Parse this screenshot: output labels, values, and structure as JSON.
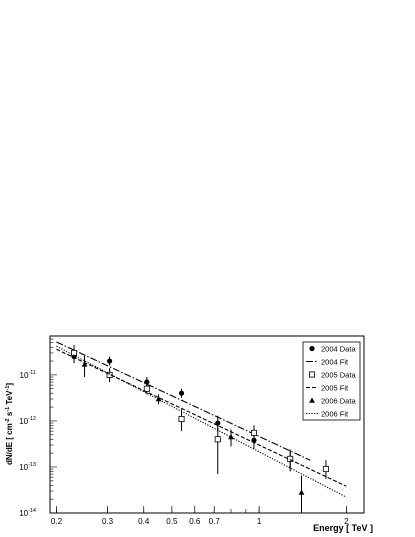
{
  "chart_data": {
    "type": "scatter",
    "title": "",
    "xlabel": "Energy  [ TeV ]",
    "ylabel": "dN/dE  [ cm",
    "ylabel_sup1": "-2",
    "ylabel_mid1": " s",
    "ylabel_sup2": "-1",
    "ylabel_mid2": " TeV",
    "ylabel_sup3": "-1",
    "ylabel_end": "]",
    "xscale": "log",
    "yscale": "log",
    "xlim": [
      0.19,
      2.3
    ],
    "ylim": [
      1e-14,
      7e-11
    ],
    "grid": false,
    "legend_position": "top-right",
    "x_tick_labels": [
      {
        "value": 0.2,
        "label": "0.2"
      },
      {
        "value": 0.3,
        "label": "0.3"
      },
      {
        "value": 0.4,
        "label": "0.4"
      },
      {
        "value": 0.5,
        "label": "0.5"
      },
      {
        "value": 0.6,
        "label": "0.6"
      },
      {
        "value": 0.7,
        "label": "0.7"
      },
      {
        "value": 1,
        "label": "1"
      },
      {
        "value": 2,
        "label": "2"
      }
    ],
    "y_tick_labels": [
      {
        "value": 1e-14,
        "base": "10",
        "exp": "-14"
      },
      {
        "value": 1e-13,
        "base": "10",
        "exp": "-13"
      },
      {
        "value": 1e-12,
        "base": "10",
        "exp": "-12"
      },
      {
        "value": 1e-11,
        "base": "10",
        "exp": "-11"
      }
    ],
    "series": [
      {
        "name": "2004 Data",
        "kind": "points",
        "marker": "circle",
        "points": [
          {
            "x": 0.23,
            "y": 2.5e-11,
            "ylo": 1.8e-11,
            "yhi": 3.4e-11
          },
          {
            "x": 0.305,
            "y": 2e-11,
            "ylo": 1.6e-11,
            "yhi": 2.5e-11
          },
          {
            "x": 0.41,
            "y": 7e-12,
            "ylo": 5.5e-12,
            "yhi": 9e-12
          },
          {
            "x": 0.54,
            "y": 4e-12,
            "ylo": 3.2e-12,
            "yhi": 5e-12
          },
          {
            "x": 0.72,
            "y": 9e-13,
            "ylo": 6e-13,
            "yhi": 1.3e-12
          },
          {
            "x": 0.96,
            "y": 3.8e-13,
            "ylo": 2.5e-13,
            "yhi": 5.5e-13
          },
          {
            "x": 1.28,
            "y": 1.5e-13,
            "ylo": 8e-14,
            "yhi": 2.4e-13
          }
        ]
      },
      {
        "name": "2004 Fit",
        "kind": "line",
        "dash": "7,2,1.5,2",
        "points": [
          {
            "x": 0.2,
            "y": 5.2e-11
          },
          {
            "x": 1.5,
            "y": 1.4e-13
          }
        ]
      },
      {
        "name": "2005 Data",
        "kind": "points",
        "marker": "open-square",
        "points": [
          {
            "x": 0.23,
            "y": 3e-11,
            "ylo": 2e-11,
            "yhi": 4.5e-11
          },
          {
            "x": 0.305,
            "y": 1e-11,
            "ylo": 7e-12,
            "yhi": 1.4e-11
          },
          {
            "x": 0.41,
            "y": 5e-12,
            "ylo": 3.8e-12,
            "yhi": 6.5e-12
          },
          {
            "x": 0.54,
            "y": 1.1e-12,
            "ylo": 6e-13,
            "yhi": 1.8e-12
          },
          {
            "x": 0.72,
            "y": 4e-13,
            "ylo": 7e-14,
            "yhi": 9e-13
          },
          {
            "x": 0.96,
            "y": 5.5e-13,
            "ylo": 3.5e-13,
            "yhi": 8e-13
          },
          {
            "x": 1.28,
            "y": 1.5e-13,
            "ylo": 9e-14,
            "yhi": 2.3e-13
          },
          {
            "x": 1.7,
            "y": 9e-14,
            "ylo": 5.5e-14,
            "yhi": 1.4e-13
          }
        ]
      },
      {
        "name": "2005 Fit",
        "kind": "line",
        "dash": "4,2",
        "points": [
          {
            "x": 0.2,
            "y": 3.6e-11
          },
          {
            "x": 2.0,
            "y": 3.8e-14
          }
        ]
      },
      {
        "name": "2006 Data",
        "kind": "points",
        "marker": "triangle",
        "points": [
          {
            "x": 0.25,
            "y": 1.7e-11,
            "ylo": 9e-12,
            "yhi": 2.6e-11
          },
          {
            "x": 0.45,
            "y": 3e-12,
            "ylo": 2.3e-12,
            "yhi": 3.8e-12
          },
          {
            "x": 0.8,
            "y": 4.5e-13,
            "ylo": 2.8e-13,
            "yhi": 6.5e-13
          },
          {
            "x": 1.4,
            "y": 2.8e-14,
            "ylo": 1e-14,
            "yhi": 6.5e-14
          }
        ]
      },
      {
        "name": "2006 Fit",
        "kind": "line",
        "dash": "1.2,1.5",
        "points": [
          {
            "x": 0.2,
            "y": 4.2e-11
          },
          {
            "x": 2.0,
            "y": 2.2e-14
          }
        ]
      }
    ]
  }
}
